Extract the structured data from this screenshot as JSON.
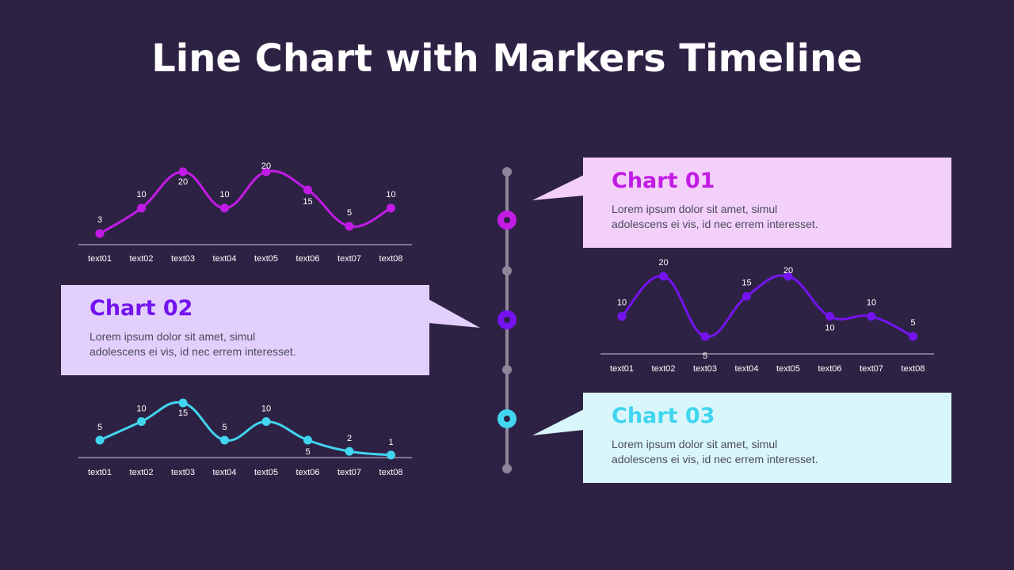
{
  "page": {
    "title": "Line Chart with Markers Timeline"
  },
  "cards": [
    {
      "title": "Chart 01",
      "text_line1": "Lorem ipsum dolor sit amet, simul",
      "text_line2": "adolescens ei vis, id nec errem  interesset.",
      "accent": "#c21be6",
      "bg": "#f3d0fa"
    },
    {
      "title": "Chart 02",
      "text_line1": "Lorem ipsum dolor sit amet, simul",
      "text_line2": "adolescens ei vis, id nec errem  interesset.",
      "accent": "#7413f0",
      "bg": "#e2cffc"
    },
    {
      "title": "Chart 03",
      "text_line1": "Lorem ipsum dolor sit amet, simul",
      "text_line2": "adolescens ei vis, id nec errem  interesset.",
      "accent": "#41d5f0",
      "bg": "#d9f7fb"
    }
  ],
  "chart_data": [
    {
      "type": "line",
      "title": "Chart 01",
      "color": "#c21be6",
      "categories": [
        "text01",
        "text02",
        "text03",
        "text04",
        "text05",
        "text06",
        "text07",
        "text08"
      ],
      "values": [
        3,
        10,
        20,
        10,
        20,
        15,
        5,
        10
      ],
      "xlabel": "",
      "ylabel": "",
      "grid": false,
      "markers": true,
      "smooth": true
    },
    {
      "type": "line",
      "title": "Chart 02",
      "color": "#7413f0",
      "categories": [
        "text01",
        "text02",
        "text03",
        "text04",
        "text05",
        "text06",
        "text07",
        "text08"
      ],
      "values": [
        10,
        20,
        5,
        15,
        20,
        10,
        10,
        5
      ],
      "xlabel": "",
      "ylabel": "",
      "grid": false,
      "markers": true,
      "smooth": true
    },
    {
      "type": "line",
      "title": "Chart 03",
      "color": "#41d5f0",
      "categories": [
        "text01",
        "text02",
        "text03",
        "text04",
        "text05",
        "text06",
        "text07",
        "text08"
      ],
      "values": [
        5,
        10,
        15,
        5,
        10,
        5,
        2,
        1
      ],
      "xlabel": "",
      "ylabel": "",
      "grid": false,
      "markers": true,
      "smooth": true
    }
  ]
}
